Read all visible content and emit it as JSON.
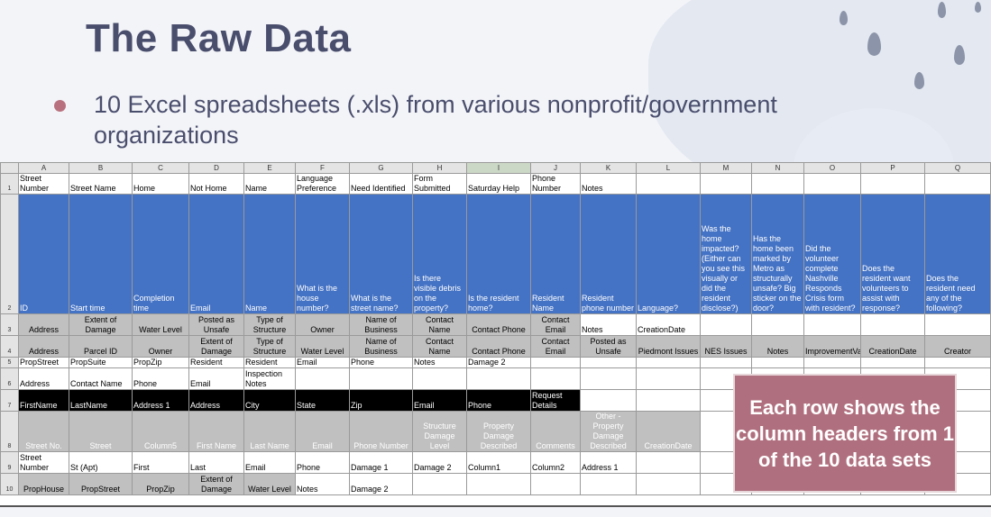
{
  "slide": {
    "title": "The Raw Data",
    "bullet": "10 Excel spreadsheets (.xls) from various nonprofit/government organizations",
    "callout": "Each row shows the column headers from 1 of the 10 data sets"
  },
  "sheet": {
    "column_letters": [
      "A",
      "B",
      "C",
      "D",
      "E",
      "F",
      "G",
      "H",
      "I",
      "J",
      "K",
      "L",
      "M",
      "N",
      "O",
      "P",
      "Q"
    ],
    "selected_column": "I",
    "rows": [
      {
        "num": "1",
        "style": "plain",
        "cells": [
          "Street Number",
          "Street Name",
          "Home",
          "Not Home",
          "Name",
          "Language Preference",
          "Need Identified",
          "Form Submitted",
          "Saturday Help",
          "Phone Number",
          "Notes",
          "",
          "",
          "",
          "",
          "",
          ""
        ]
      },
      {
        "num": "2",
        "style": "blue",
        "cells": [
          "ID",
          "Start time",
          "Completion time",
          "Email",
          "Name",
          "What is the house number?",
          "What is the street name?",
          "Is there visible debris on the property?",
          "Is the resident home?",
          "Resident Name",
          "Resident phone number",
          "Language?",
          "Was the home impacted? (Either can you see this visually or did the resident disclose?)",
          "Has the home been marked by Metro as structurally unsafe? Big sticker on the door?",
          "Did the volunteer complete Nashville Responds Crisis form with resident?",
          "Does the resident want volunteers to assist with response?",
          "Does the resident need any of the following?"
        ]
      },
      {
        "num": "3",
        "style": "gray",
        "cells": [
          "Address",
          "Extent of Damage",
          "Water Level",
          "Posted as Unsafe",
          "Type of Structure",
          "Owner",
          "Name of Business",
          "Contact Name",
          "Contact Phone",
          "Contact Email",
          "Notes",
          "CreationDate",
          "",
          "",
          "",
          "",
          ""
        ]
      },
      {
        "num": "4",
        "style": "gray",
        "cells": [
          "Address",
          "Parcel ID",
          "Owner",
          "Extent of Damage",
          "Type of Structure",
          "Water Level",
          "Name of Business",
          "Contact Name",
          "Contact Phone",
          "Contact Email",
          "Posted as Unsafe",
          "Piedmont Issues",
          "NES Issues",
          "Notes",
          "ImprovementValue",
          "CreationDate",
          "Creator"
        ]
      },
      {
        "num": "5",
        "style": "plain",
        "cells": [
          "PropStreet",
          "PropSuite",
          "PropZip",
          "Resident",
          "Resident",
          "Email",
          "Phone",
          "Notes",
          "Damage 2",
          "",
          "",
          "",
          "",
          "",
          "",
          "",
          ""
        ]
      },
      {
        "num": "6",
        "style": "plain",
        "cells": [
          "Address",
          "Contact Name",
          "Phone",
          "Email",
          "Inspection Notes",
          "",
          "",
          "",
          "",
          "",
          "",
          "",
          "",
          "",
          "",
          "",
          ""
        ]
      },
      {
        "num": "7",
        "style": "black",
        "cells": [
          "FirstName",
          "LastName",
          "Address 1",
          "Address",
          "City",
          "State",
          "Zip",
          "Email",
          "Phone",
          "Request Details",
          "",
          "",
          "",
          "",
          "",
          "",
          ""
        ]
      },
      {
        "num": "8",
        "style": "gray",
        "cells": [
          "Street No.",
          "Street",
          "Column5",
          "First Name",
          "Last Name",
          "Email",
          "Phone Number",
          "Structure Damage Level",
          "Property Damage Described",
          "Comments",
          "Other - Property Damage Described",
          "CreationDate",
          "",
          "",
          "",
          "",
          ""
        ]
      },
      {
        "num": "9",
        "style": "plain",
        "cells": [
          "Street Number",
          "St (Apt)",
          "First",
          "Last",
          "Email",
          "Phone",
          "Damage 1",
          "Damage 2",
          "Column1",
          "Column2",
          "Address 1",
          "",
          "",
          "",
          "",
          "",
          ""
        ]
      },
      {
        "num": "10",
        "style": "gray",
        "cells": [
          "PropHouse",
          "PropStreet",
          "PropZip",
          "Extent of Damage",
          "Water Level",
          "Notes",
          "Damage 2",
          "",
          "",
          "",
          "",
          "",
          "",
          "",
          "",
          "",
          ""
        ]
      }
    ]
  }
}
